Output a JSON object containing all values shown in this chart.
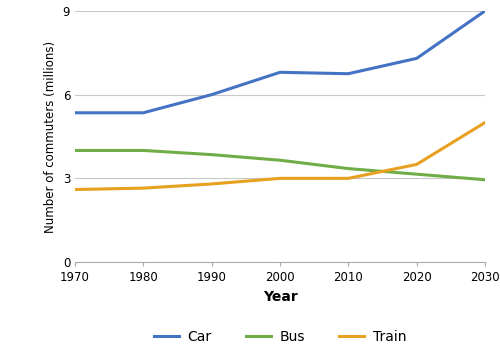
{
  "years": [
    1970,
    1980,
    1990,
    2000,
    2010,
    2020,
    2030
  ],
  "car": [
    5.35,
    5.35,
    6.0,
    6.8,
    6.75,
    7.3,
    9.0
  ],
  "bus": [
    4.0,
    4.0,
    3.85,
    3.65,
    3.35,
    3.15,
    2.95
  ],
  "train": [
    2.6,
    2.65,
    2.8,
    3.0,
    3.0,
    3.5,
    5.0
  ],
  "car_color": "#4472c4",
  "bus_color": "#70ad47",
  "train_color": "#e8a020",
  "xlabel": "Year",
  "ylabel": "Number of commuters (millions)",
  "ylim": [
    0,
    9
  ],
  "yticks": [
    0,
    3,
    6,
    9
  ],
  "xticks": [
    1970,
    1980,
    1990,
    2000,
    2010,
    2020,
    2030
  ],
  "legend_labels": [
    "Car",
    "Bus",
    "Train"
  ],
  "line_width": 2.2,
  "background_color": "#ffffff",
  "grid_color": "#c8c8c8"
}
